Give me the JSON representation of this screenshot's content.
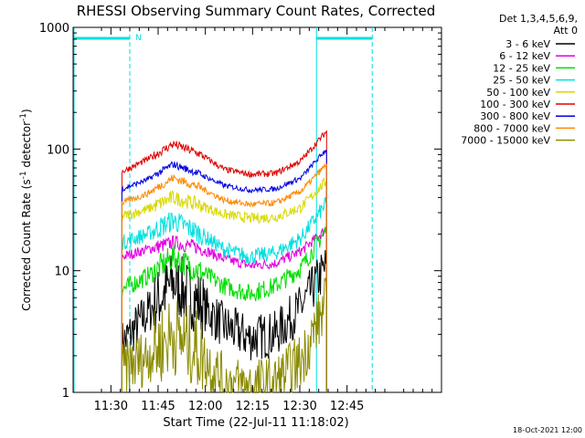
{
  "chart_data": {
    "type": "line",
    "title": "RHESSI Observing Summary Count Rates, Corrected",
    "xlabel": "Start Time (22-Jul-11 11:18:02)",
    "ylabel_parts": {
      "pre": "Corrected Count Rate (s",
      "sup1": "-1",
      "mid": " detector",
      "sup2": "-1",
      "post": ")"
    },
    "ylog": true,
    "xlim_minutes": [
      0,
      117
    ],
    "ylim": [
      1,
      1000
    ],
    "x_ticks": [
      {
        "minute": 12,
        "label": "11:30"
      },
      {
        "minute": 27,
        "label": "11:45"
      },
      {
        "minute": 42,
        "label": "12:00"
      },
      {
        "minute": 57,
        "label": "12:15"
      },
      {
        "minute": 72,
        "label": "12:30"
      },
      {
        "minute": 87,
        "label": "12:45"
      }
    ],
    "y_ticks": [
      {
        "value": 1,
        "label": "1"
      },
      {
        "value": 10,
        "label": "10"
      },
      {
        "value": 100,
        "label": "100"
      },
      {
        "value": 1000,
        "label": "1000"
      }
    ],
    "legend_header": [
      "Det 1,3,4,5,6,9,",
      "Att 0"
    ],
    "legend_position": "right",
    "footer_date": "18-Oct-2021 12:00",
    "flag_label": "N",
    "data_window_minutes": [
      15.5,
      80.5
    ],
    "night_intervals_minutes": [
      [
        0,
        18
      ],
      [
        77,
        95
      ]
    ],
    "series": [
      {
        "name": "3 - 6 keV",
        "color": "#000000",
        "values": [
          2.5,
          4.5,
          8,
          5.5,
          3.5,
          2.8,
          3,
          5,
          11
        ],
        "noise": 0.45
      },
      {
        "name": "6 - 12 keV",
        "color": "#e000e0",
        "values": [
          13,
          15,
          17,
          15.5,
          12.5,
          11,
          11.5,
          14.5,
          22
        ],
        "noise": 0.1
      },
      {
        "name": "12 - 25 keV",
        "color": "#00dd00",
        "values": [
          7,
          9,
          13,
          10,
          7.5,
          6.5,
          7.5,
          10.5,
          22
        ],
        "noise": 0.18
      },
      {
        "name": "25 - 50 keV",
        "color": "#00e0e0",
        "values": [
          17,
          20,
          26,
          20.5,
          15,
          13,
          14,
          18.5,
          36
        ],
        "noise": 0.15
      },
      {
        "name": "50 - 100 keV",
        "color": "#d8d800",
        "values": [
          28,
          32,
          40,
          35,
          29,
          27,
          27.5,
          33,
          55
        ],
        "noise": 0.1
      },
      {
        "name": "100 - 300 keV",
        "color": "#e00000",
        "values": [
          65,
          82,
          110,
          92,
          68,
          62,
          63,
          80,
          140
        ],
        "noise": 0.06
      },
      {
        "name": "300 - 800 keV",
        "color": "#0000e0",
        "values": [
          47,
          56,
          75,
          63,
          50,
          46,
          47,
          58,
          100
        ],
        "noise": 0.05
      },
      {
        "name": "800 - 7000 keV",
        "color": "#ff8800",
        "values": [
          36,
          43,
          58,
          49,
          38,
          35,
          36,
          45,
          75
        ],
        "noise": 0.06
      },
      {
        "name": "7000 - 15000 keV",
        "color": "#8b8b00",
        "values": [
          1.5,
          2,
          3,
          2.2,
          1.2,
          1.1,
          1.2,
          1.8,
          5.5
        ],
        "noise": 0.55
      }
    ]
  }
}
